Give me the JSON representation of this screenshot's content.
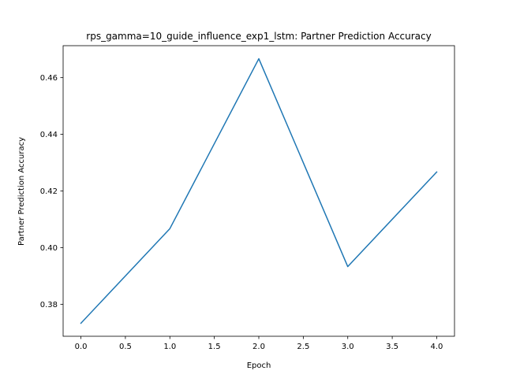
{
  "chart_data": {
    "type": "line",
    "title": "rps_gamma=10_guide_influence_exp1_lstm: Partner Prediction Accuracy",
    "xlabel": "Epoch",
    "ylabel": "Partner Prediction Accuracy",
    "x": [
      0,
      1,
      2,
      3,
      4
    ],
    "series": [
      {
        "values": [
          0.3733,
          0.4067,
          0.4667,
          0.3933,
          0.4267
        ],
        "color": "#1f77b4"
      }
    ],
    "xlim": [
      -0.2,
      4.2
    ],
    "ylim": [
      0.3687,
      0.4713
    ],
    "xticks": [
      0.0,
      0.5,
      1.0,
      1.5,
      2.0,
      2.5,
      3.0,
      3.5,
      4.0
    ],
    "xtick_labels": [
      "0.0",
      "0.5",
      "1.0",
      "1.5",
      "2.0",
      "2.5",
      "3.0",
      "3.5",
      "4.0"
    ],
    "yticks": [
      0.38,
      0.4,
      0.42,
      0.44,
      0.46
    ],
    "ytick_labels": [
      "0.38",
      "0.40",
      "0.42",
      "0.44",
      "0.46"
    ],
    "grid": false,
    "legend": "none"
  }
}
